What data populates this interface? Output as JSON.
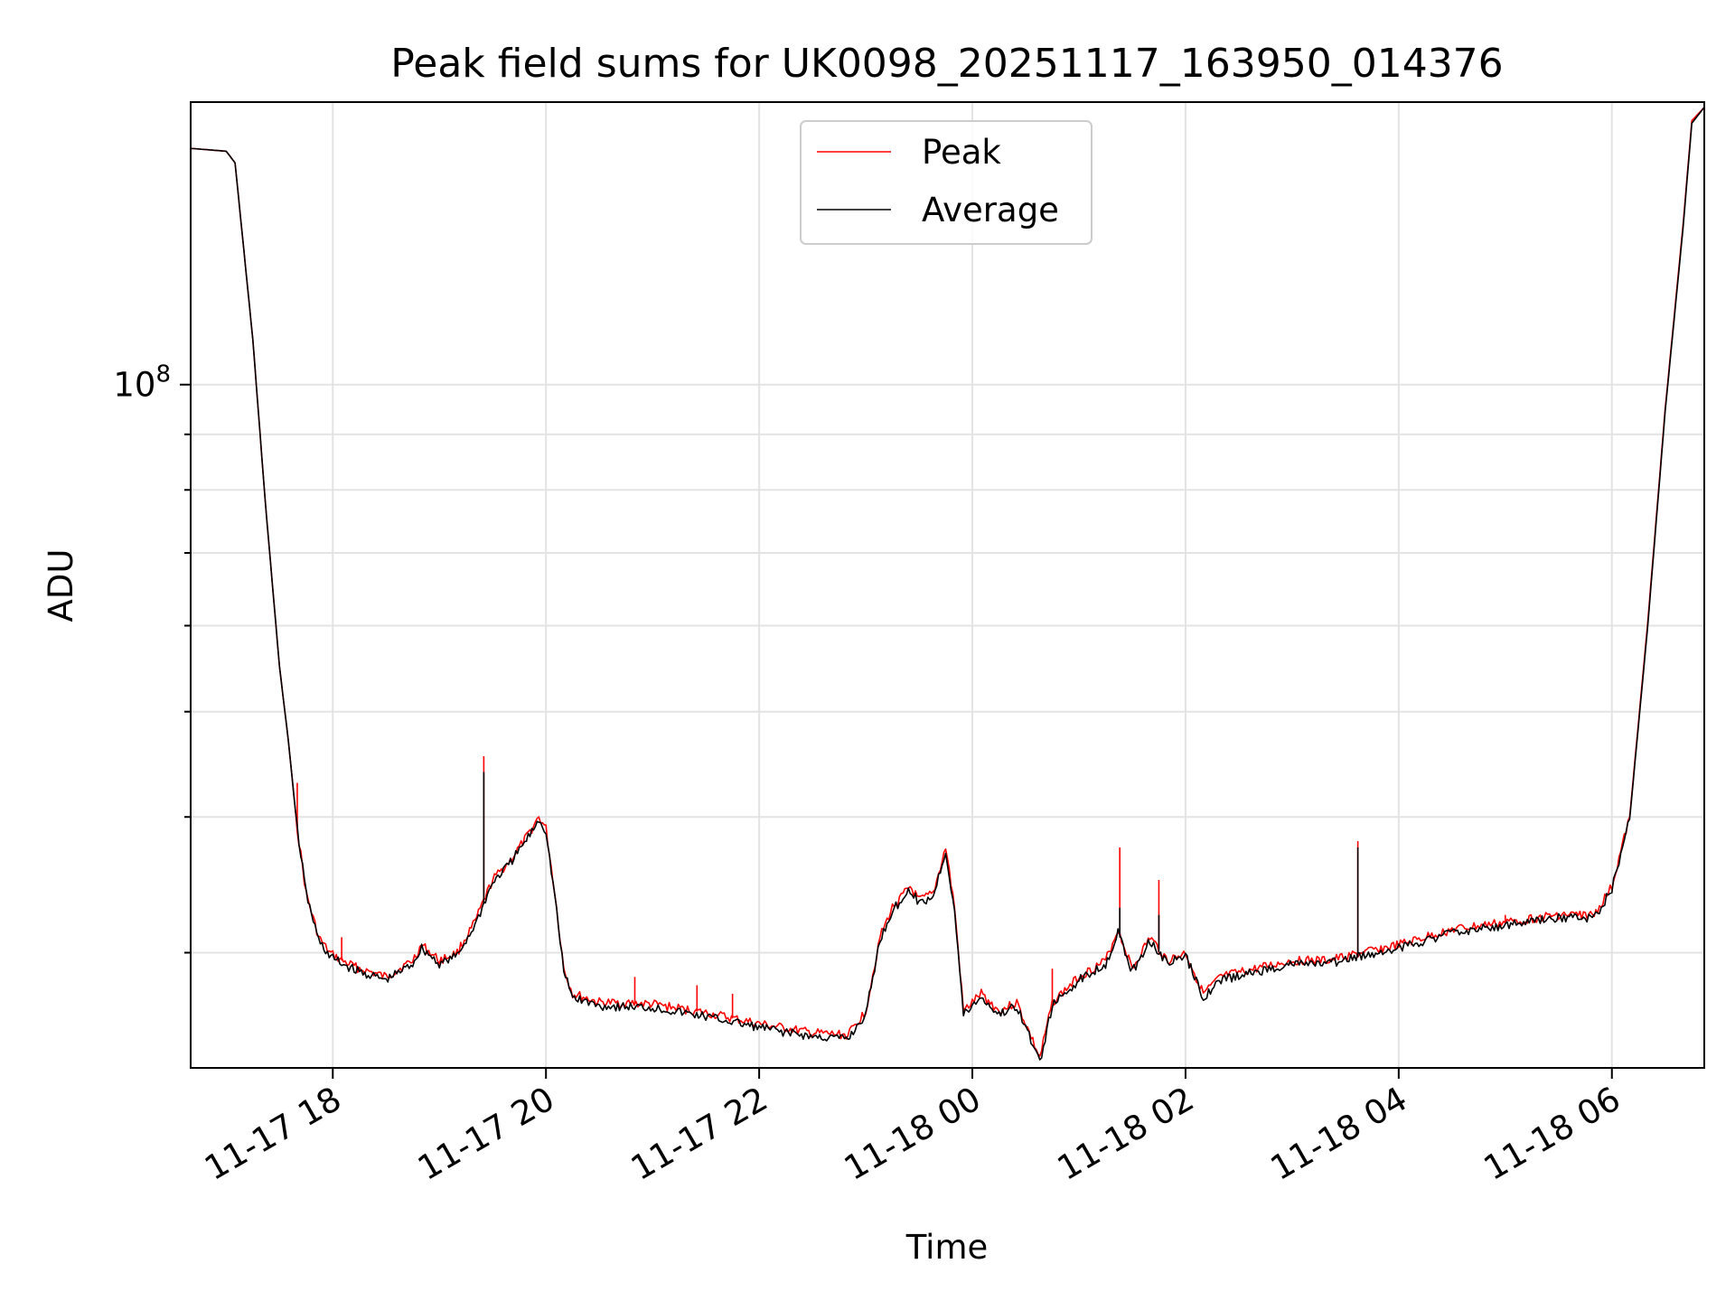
{
  "chart_data": {
    "type": "line",
    "title": "Peak field sums for UK0098_20251117_163950_014376",
    "xlabel": "Time",
    "ylabel": "ADU",
    "yscale": "log",
    "grid": true,
    "legend_position": "upper center",
    "xlim": [
      "2025-11-17 16:40",
      "2025-11-18 06:52"
    ],
    "ylim": [
      23500000,
      182000000
    ],
    "x_ticks": [
      {
        "t": "2025-11-17 18:00",
        "label": "11-17 18"
      },
      {
        "t": "2025-11-17 20:00",
        "label": "11-17 20"
      },
      {
        "t": "2025-11-17 22:00",
        "label": "11-17 22"
      },
      {
        "t": "2025-11-18 00:00",
        "label": "11-18 00"
      },
      {
        "t": "2025-11-18 02:00",
        "label": "11-18 02"
      },
      {
        "t": "2025-11-18 04:00",
        "label": "11-18 04"
      },
      {
        "t": "2025-11-18 06:00",
        "label": "11-18 06"
      }
    ],
    "y_major_ticks": [
      {
        "value": 100000000,
        "base": "10",
        "exp": "8"
      }
    ],
    "y_minor_ticks": [
      30000000,
      40000000,
      50000000,
      60000000,
      70000000,
      80000000,
      90000000,
      200000000
    ],
    "series": [
      {
        "name": "Peak",
        "color": "#ff0000",
        "points": [
          [
            "2025-11-17 16:40",
            165000000
          ],
          [
            "2025-11-17 17:00",
            164000000
          ],
          [
            "2025-11-17 17:05",
            160000000
          ],
          [
            "2025-11-17 17:15",
            110000000
          ],
          [
            "2025-11-17 17:22",
            78000000
          ],
          [
            "2025-11-17 17:30",
            55000000
          ],
          [
            "2025-11-17 17:35",
            47000000
          ],
          [
            "2025-11-17 17:40",
            39000000
          ],
          [
            "2025-11-17 17:45",
            34000000
          ],
          [
            "2025-11-17 17:52",
            31000000
          ],
          [
            "2025-11-17 17:58",
            30000000
          ],
          [
            "2025-11-17 18:05",
            29500000
          ],
          [
            "2025-11-17 18:15",
            29000000
          ],
          [
            "2025-11-17 18:30",
            28500000
          ],
          [
            "2025-11-17 18:45",
            29500000
          ],
          [
            "2025-11-17 18:50",
            30500000
          ],
          [
            "2025-11-17 19:00",
            29500000
          ],
          [
            "2025-11-17 19:10",
            30000000
          ],
          [
            "2025-11-17 19:20",
            32000000
          ],
          [
            "2025-11-17 19:30",
            35000000
          ],
          [
            "2025-11-17 19:40",
            36500000
          ],
          [
            "2025-11-17 19:50",
            38500000
          ],
          [
            "2025-11-17 19:56",
            40000000
          ],
          [
            "2025-11-17 20:00",
            39000000
          ],
          [
            "2025-11-17 20:05",
            34000000
          ],
          [
            "2025-11-17 20:10",
            29000000
          ],
          [
            "2025-11-17 20:15",
            27500000
          ],
          [
            "2025-11-17 20:30",
            27000000
          ],
          [
            "2025-11-17 21:00",
            26900000
          ],
          [
            "2025-11-17 21:30",
            26400000
          ],
          [
            "2025-11-17 22:00",
            25800000
          ],
          [
            "2025-11-17 22:30",
            25300000
          ],
          [
            "2025-11-17 22:50",
            25200000
          ],
          [
            "2025-11-17 23:00",
            26500000
          ],
          [
            "2025-11-17 23:08",
            31000000
          ],
          [
            "2025-11-17 23:15",
            33000000
          ],
          [
            "2025-11-17 23:25",
            34500000
          ],
          [
            "2025-11-17 23:30",
            33500000
          ],
          [
            "2025-11-17 23:38",
            34000000
          ],
          [
            "2025-11-17 23:45",
            37500000
          ],
          [
            "2025-11-17 23:50",
            33000000
          ],
          [
            "2025-11-17 23:55",
            26500000
          ],
          [
            "2025-11-18 00:05",
            27500000
          ],
          [
            "2025-11-18 00:15",
            26500000
          ],
          [
            "2025-11-18 00:25",
            27000000
          ],
          [
            "2025-11-18 00:38",
            24000000
          ],
          [
            "2025-11-18 00:45",
            27000000
          ],
          [
            "2025-11-18 01:00",
            28500000
          ],
          [
            "2025-11-18 01:15",
            29500000
          ],
          [
            "2025-11-18 01:22",
            31500000
          ],
          [
            "2025-11-18 01:30",
            29000000
          ],
          [
            "2025-11-18 01:40",
            31000000
          ],
          [
            "2025-11-18 01:50",
            29500000
          ],
          [
            "2025-11-18 02:00",
            30000000
          ],
          [
            "2025-11-18 02:10",
            27500000
          ],
          [
            "2025-11-18 02:20",
            28500000
          ],
          [
            "2025-11-18 02:40",
            29000000
          ],
          [
            "2025-11-18 03:00",
            29500000
          ],
          [
            "2025-11-18 03:20",
            29500000
          ],
          [
            "2025-11-18 03:40",
            30000000
          ],
          [
            "2025-11-18 04:00",
            30500000
          ],
          [
            "2025-11-18 04:30",
            31500000
          ],
          [
            "2025-11-18 05:00",
            32000000
          ],
          [
            "2025-11-18 05:30",
            32500000
          ],
          [
            "2025-11-18 05:50",
            32500000
          ],
          [
            "2025-11-18 06:00",
            34500000
          ],
          [
            "2025-11-18 06:10",
            40000000
          ],
          [
            "2025-11-18 06:20",
            60000000
          ],
          [
            "2025-11-18 06:30",
            95000000
          ],
          [
            "2025-11-18 06:40",
            140000000
          ],
          [
            "2025-11-18 06:45",
            175000000
          ],
          [
            "2025-11-18 06:52",
            180000000
          ]
        ],
        "spikes": [
          [
            "2025-11-17 17:40",
            43000000
          ],
          [
            "2025-11-17 18:05",
            31000000
          ],
          [
            "2025-11-17 19:25",
            45500000
          ],
          [
            "2025-11-17 20:50",
            28500000
          ],
          [
            "2025-11-17 21:25",
            28000000
          ],
          [
            "2025-11-17 21:45",
            27500000
          ],
          [
            "2025-11-18 00:45",
            29000000
          ],
          [
            "2025-11-18 01:23",
            37500000
          ],
          [
            "2025-11-18 01:45",
            35000000
          ],
          [
            "2025-11-18 03:37",
            38000000
          ],
          [
            "2025-11-18 05:00",
            32500000
          ]
        ]
      },
      {
        "name": "Average",
        "color": "#000000",
        "points": [
          [
            "2025-11-17 16:40",
            165000000
          ],
          [
            "2025-11-17 17:00",
            164000000
          ],
          [
            "2025-11-17 17:05",
            160000000
          ],
          [
            "2025-11-17 17:15",
            110000000
          ],
          [
            "2025-11-17 17:22",
            78000000
          ],
          [
            "2025-11-17 17:30",
            55000000
          ],
          [
            "2025-11-17 17:35",
            47000000
          ],
          [
            "2025-11-17 17:40",
            39000000
          ],
          [
            "2025-11-17 17:45",
            34000000
          ],
          [
            "2025-11-17 17:52",
            30800000
          ],
          [
            "2025-11-17 17:58",
            29800000
          ],
          [
            "2025-11-17 18:05",
            29300000
          ],
          [
            "2025-11-17 18:15",
            28800000
          ],
          [
            "2025-11-17 18:30",
            28300000
          ],
          [
            "2025-11-17 18:45",
            29300000
          ],
          [
            "2025-11-17 18:50",
            30300000
          ],
          [
            "2025-11-17 19:00",
            29300000
          ],
          [
            "2025-11-17 19:10",
            29800000
          ],
          [
            "2025-11-17 19:20",
            31800000
          ],
          [
            "2025-11-17 19:30",
            34800000
          ],
          [
            "2025-11-17 19:40",
            36300000
          ],
          [
            "2025-11-17 19:50",
            38300000
          ],
          [
            "2025-11-17 19:56",
            39800000
          ],
          [
            "2025-11-17 20:00",
            38800000
          ],
          [
            "2025-11-17 20:05",
            33800000
          ],
          [
            "2025-11-17 20:10",
            28800000
          ],
          [
            "2025-11-17 20:15",
            27300000
          ],
          [
            "2025-11-17 20:30",
            26800000
          ],
          [
            "2025-11-17 21:00",
            26700000
          ],
          [
            "2025-11-17 21:30",
            26200000
          ],
          [
            "2025-11-17 22:00",
            25600000
          ],
          [
            "2025-11-17 22:30",
            25100000
          ],
          [
            "2025-11-17 22:50",
            25000000
          ],
          [
            "2025-11-17 23:00",
            26300000
          ],
          [
            "2025-11-17 23:08",
            30800000
          ],
          [
            "2025-11-17 23:15",
            32800000
          ],
          [
            "2025-11-17 23:25",
            34300000
          ],
          [
            "2025-11-17 23:30",
            33300000
          ],
          [
            "2025-11-17 23:38",
            33800000
          ],
          [
            "2025-11-17 23:45",
            37200000
          ],
          [
            "2025-11-17 23:50",
            32800000
          ],
          [
            "2025-11-17 23:55",
            26300000
          ],
          [
            "2025-11-18 00:05",
            27300000
          ],
          [
            "2025-11-18 00:15",
            26300000
          ],
          [
            "2025-11-18 00:25",
            26800000
          ],
          [
            "2025-11-18 00:38",
            23800000
          ],
          [
            "2025-11-18 00:45",
            26800000
          ],
          [
            "2025-11-18 01:00",
            28300000
          ],
          [
            "2025-11-18 01:15",
            29300000
          ],
          [
            "2025-11-18 01:22",
            31300000
          ],
          [
            "2025-11-18 01:30",
            28800000
          ],
          [
            "2025-11-18 01:40",
            30800000
          ],
          [
            "2025-11-18 01:50",
            29300000
          ],
          [
            "2025-11-18 02:00",
            29800000
          ],
          [
            "2025-11-18 02:10",
            27300000
          ],
          [
            "2025-11-18 02:20",
            28300000
          ],
          [
            "2025-11-18 02:40",
            28800000
          ],
          [
            "2025-11-18 03:00",
            29300000
          ],
          [
            "2025-11-18 03:20",
            29300000
          ],
          [
            "2025-11-18 03:40",
            29800000
          ],
          [
            "2025-11-18 04:00",
            30300000
          ],
          [
            "2025-11-18 04:30",
            31300000
          ],
          [
            "2025-11-18 05:00",
            31800000
          ],
          [
            "2025-11-18 05:30",
            32300000
          ],
          [
            "2025-11-18 05:50",
            32300000
          ],
          [
            "2025-11-18 06:00",
            34300000
          ],
          [
            "2025-11-18 06:10",
            39800000
          ],
          [
            "2025-11-18 06:20",
            59500000
          ],
          [
            "2025-11-18 06:30",
            94500000
          ],
          [
            "2025-11-18 06:40",
            139000000
          ],
          [
            "2025-11-18 06:45",
            174000000
          ],
          [
            "2025-11-18 06:52",
            180000000
          ]
        ],
        "spikes": [
          [
            "2025-11-17 19:25",
            44000000
          ],
          [
            "2025-11-18 01:23",
            33000000
          ],
          [
            "2025-11-18 01:45",
            32500000
          ],
          [
            "2025-11-18 03:37",
            37500000
          ]
        ]
      }
    ]
  }
}
